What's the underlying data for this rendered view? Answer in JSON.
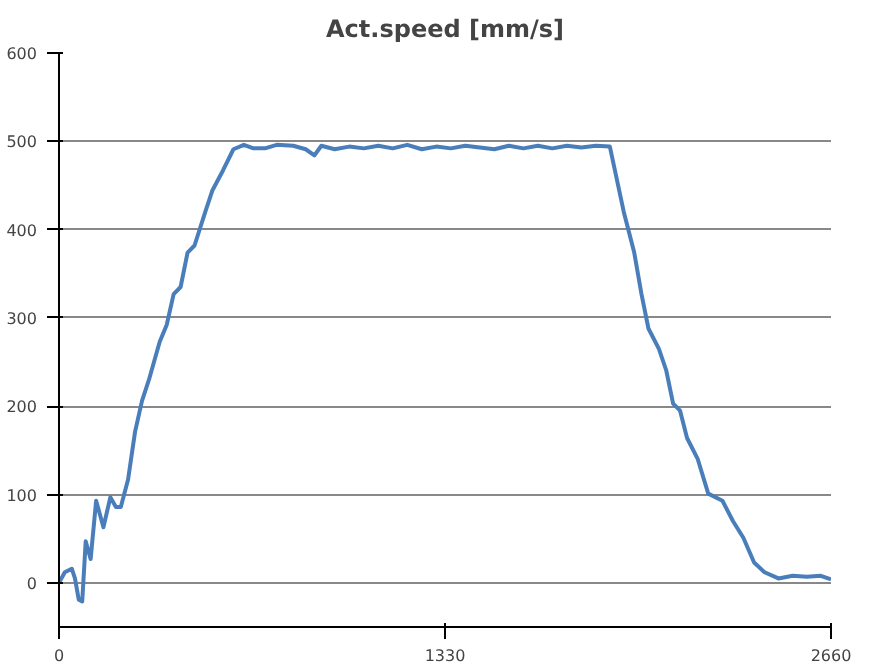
{
  "chart_data": {
    "type": "line",
    "title": "Act.speed [mm/s]",
    "x": [
      0,
      20,
      44,
      55,
      68,
      80,
      92,
      109,
      128,
      153,
      177,
      196,
      213,
      238,
      262,
      286,
      310,
      347,
      371,
      395,
      419,
      443,
      467,
      504,
      528,
      565,
      601,
      637,
      670,
      710,
      750,
      807,
      850,
      880,
      904,
      950,
      1000,
      1050,
      1100,
      1150,
      1200,
      1250,
      1300,
      1350,
      1400,
      1450,
      1500,
      1550,
      1600,
      1650,
      1700,
      1750,
      1800,
      1850,
      1898,
      1946,
      1982,
      2007,
      2031,
      2067,
      2092,
      2116,
      2140,
      2164,
      2201,
      2237,
      2286,
      2322,
      2358,
      2395,
      2431,
      2479,
      2528,
      2576,
      2625,
      2660
    ],
    "series": [
      {
        "color": "#4a7ebb",
        "values": [
          0,
          12,
          16,
          5,
          -19,
          -21,
          47,
          27,
          93,
          63,
          97,
          86,
          86,
          117,
          171,
          206,
          230,
          273,
          292,
          327,
          335,
          374,
          382,
          420,
          444,
          467,
          491,
          496,
          492,
          492,
          496,
          495,
          491,
          484,
          495,
          491,
          494,
          492,
          495,
          492,
          496,
          491,
          494,
          492,
          495,
          493,
          491,
          495,
          492,
          495,
          492,
          495,
          493,
          495,
          494,
          420,
          374,
          327,
          288,
          265,
          241,
          203,
          195,
          164,
          140,
          101,
          93,
          70,
          51,
          23,
          12,
          5,
          8,
          7,
          8,
          4
        ]
      }
    ],
    "xlim": [
      0,
      2660
    ],
    "ylim": [
      -50,
      600
    ],
    "xticks": [
      0,
      1330,
      2660
    ],
    "yticks": [
      0,
      100,
      200,
      300,
      400,
      500,
      600
    ],
    "grid": "y",
    "line_style": "solid",
    "marker": "none"
  }
}
